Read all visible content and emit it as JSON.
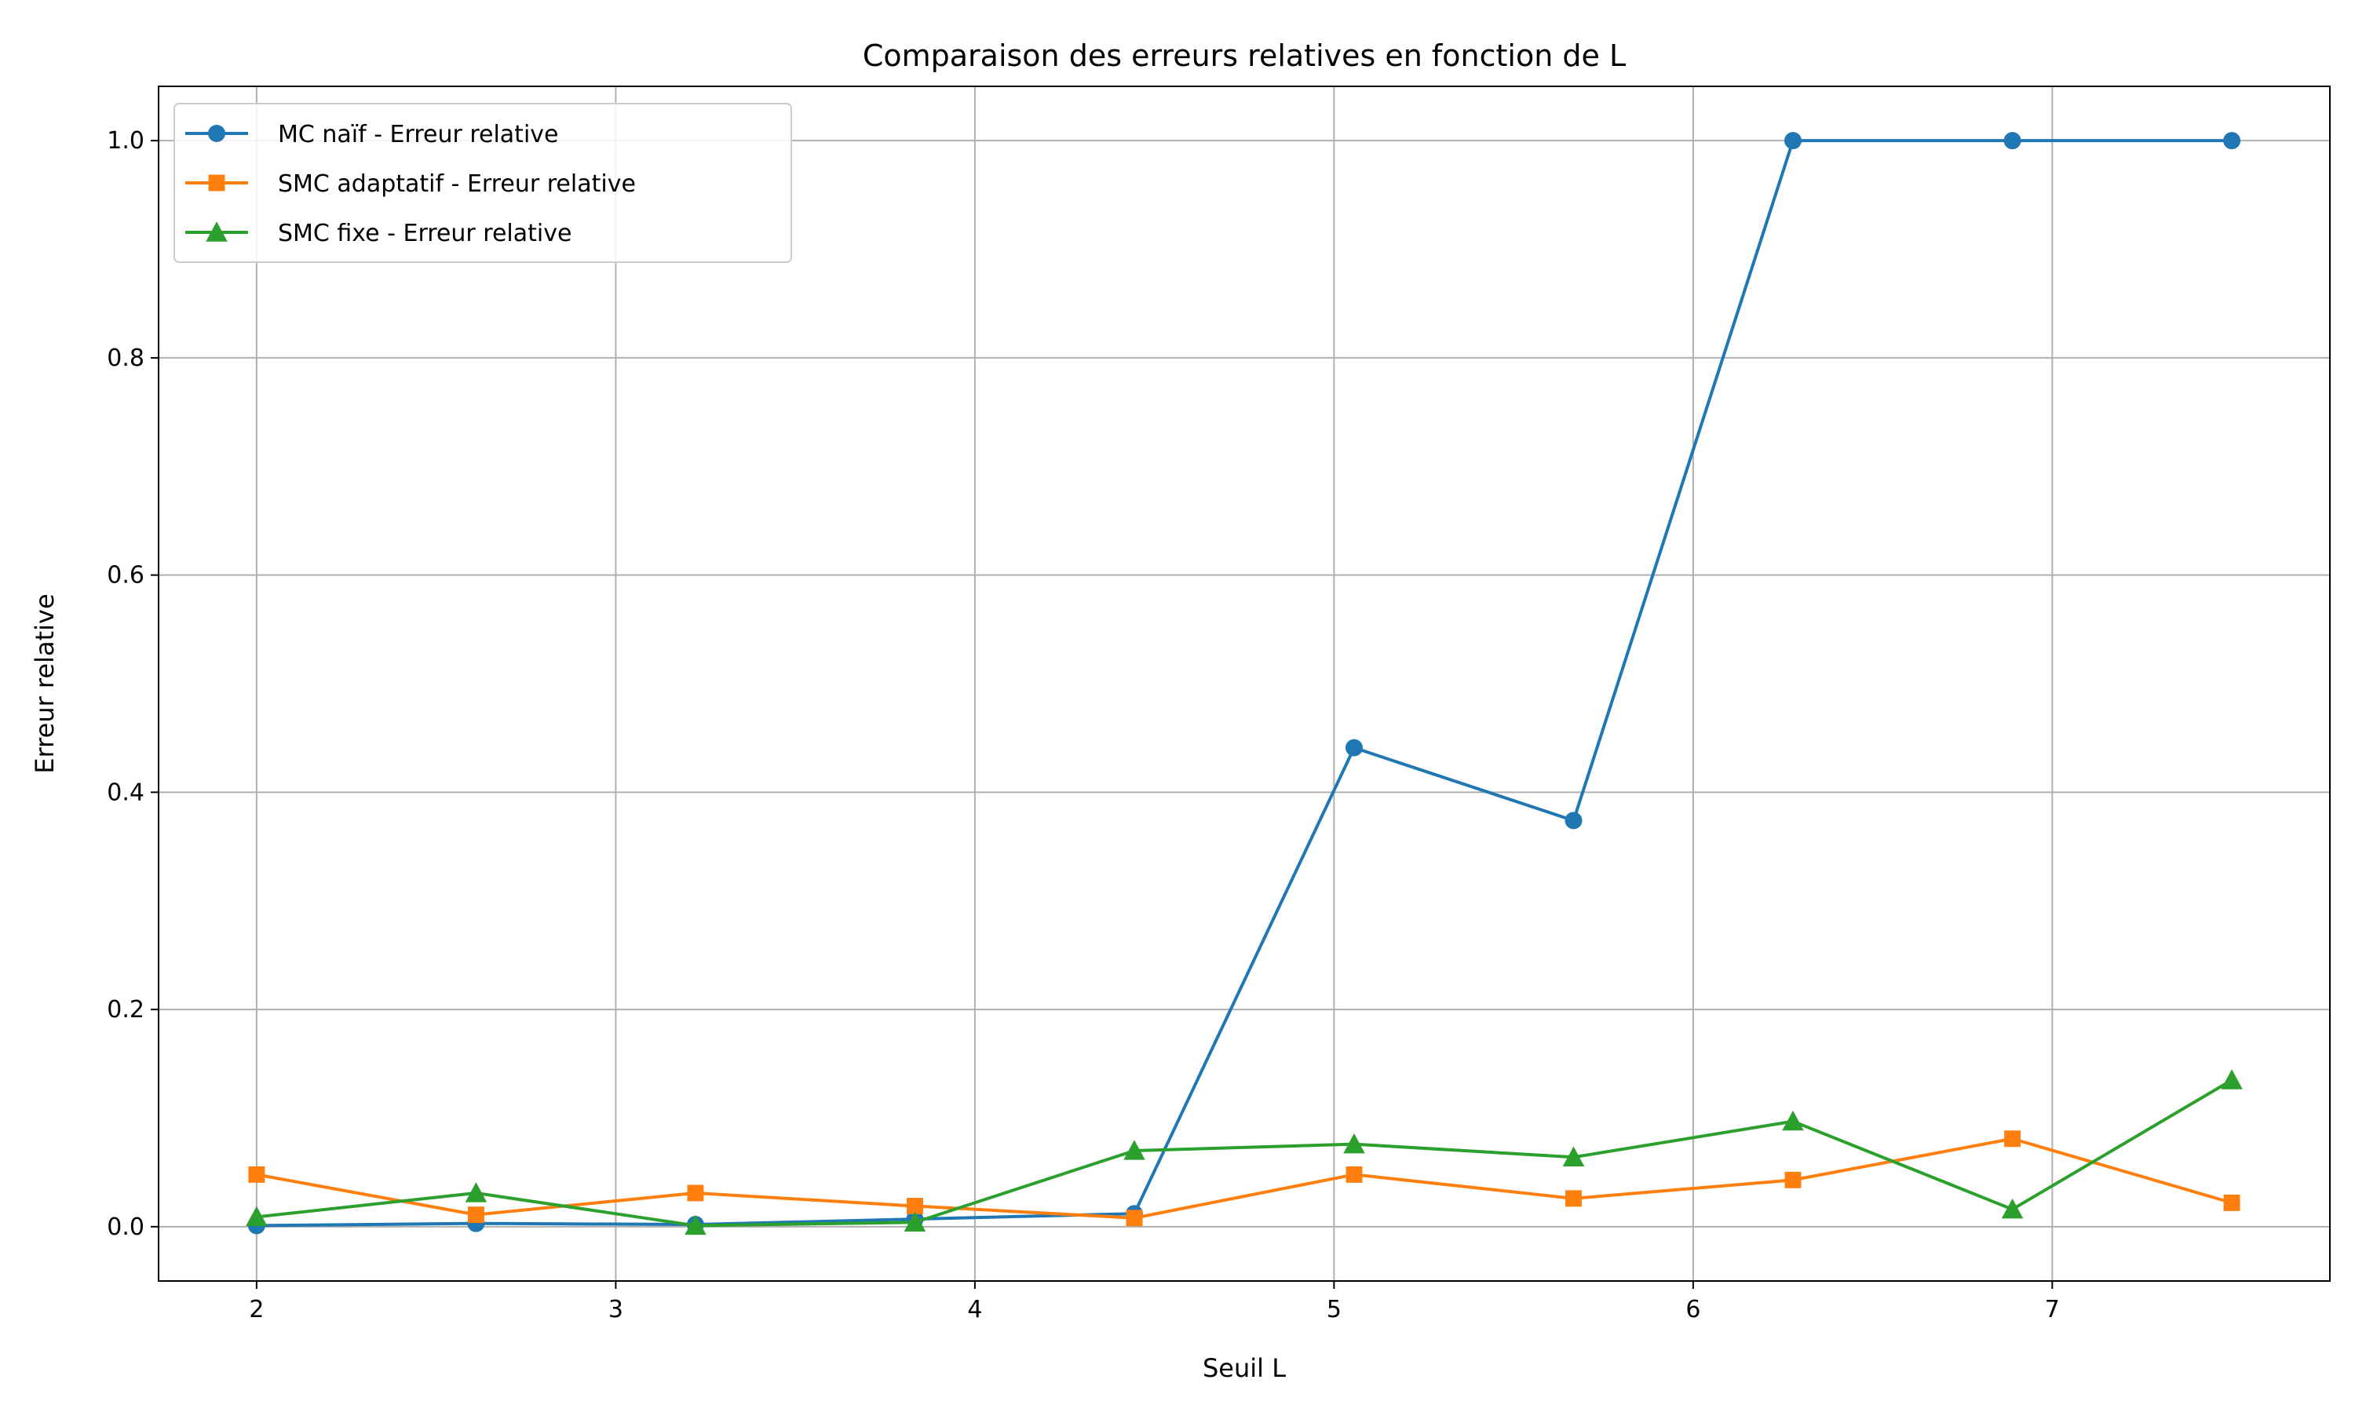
{
  "chart_data": {
    "type": "line",
    "title": "Comparaison des erreurs relatives en fonction de L",
    "xlabel": "Seuil L",
    "ylabel": "Erreur relative",
    "xlim": [
      1.727,
      7.773
    ],
    "ylim": [
      -0.05,
      1.05
    ],
    "xticks": [
      "2",
      "3",
      "4",
      "5",
      "6",
      "7"
    ],
    "yticks": [
      "0.0",
      "0.2",
      "0.4",
      "0.6",
      "0.8",
      "1.0"
    ],
    "grid": true,
    "legend_position": "top-left",
    "x": [
      2.0,
      2.611,
      3.222,
      3.833,
      4.444,
      5.056,
      5.667,
      6.278,
      6.889,
      7.5
    ],
    "series": [
      {
        "name": "MC naïf - Erreur relative",
        "color": "#1f77b4",
        "marker": "circle",
        "values": [
          0.001,
          0.003,
          0.002,
          0.007,
          0.012,
          0.441,
          0.374,
          1.0,
          1.0,
          1.0
        ]
      },
      {
        "name": "SMC adaptatif - Erreur relative",
        "color": "#ff7f0e",
        "marker": "square",
        "values": [
          0.048,
          0.011,
          0.031,
          0.019,
          0.008,
          0.048,
          0.026,
          0.043,
          0.081,
          0.022
        ]
      },
      {
        "name": "SMC fixe - Erreur relative",
        "color": "#2ca02c",
        "marker": "triangle",
        "values": [
          0.009,
          0.031,
          0.001,
          0.004,
          0.07,
          0.076,
          0.064,
          0.097,
          0.016,
          0.135
        ]
      }
    ]
  }
}
